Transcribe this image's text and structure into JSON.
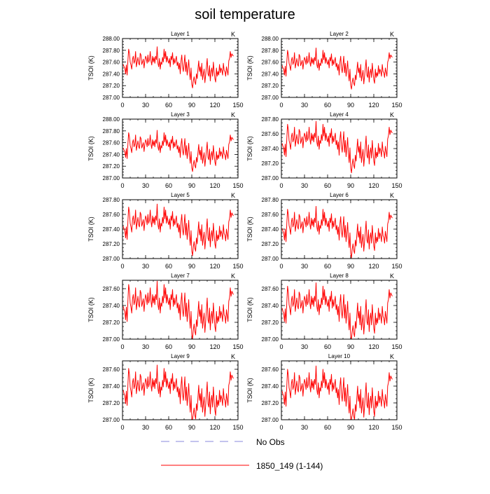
{
  "title": "soil temperature",
  "y_axis_label": "TSOI  (K)",
  "unit_label": "K",
  "colors": {
    "obs": "#8888dd",
    "model": "#ff0000"
  },
  "legend": [
    {
      "label": "No Obs",
      "style": "dashed",
      "color": "#8888dd"
    },
    {
      "label": "1850_149 (1-144)",
      "style": "solid",
      "color": "#ff0000"
    }
  ],
  "chart_data": [
    {
      "type": "line",
      "title": "Layer 1",
      "ylabel": "TSOI  (K)",
      "xlim": [
        0,
        150
      ],
      "xticks": [
        0,
        30,
        60,
        90,
        120,
        150
      ],
      "ylim": [
        287.0,
        288.0
      ],
      "yticks": [
        "287.00",
        "287.20",
        "287.40",
        "287.60",
        "287.80",
        "288.00"
      ],
      "offset": 0.0,
      "series": [
        {
          "name": "1850_149 (1-144)",
          "color": "#ff0000"
        }
      ]
    },
    {
      "type": "line",
      "title": "Layer 2",
      "ylabel": "TSOI  (K)",
      "xlim": [
        0,
        150
      ],
      "xticks": [
        0,
        30,
        60,
        90,
        120,
        150
      ],
      "ylim": [
        287.0,
        288.0
      ],
      "yticks": [
        "287.00",
        "287.20",
        "287.40",
        "287.60",
        "287.80",
        "288.00"
      ],
      "offset": -0.02,
      "series": [
        {
          "name": "1850_149 (1-144)",
          "color": "#ff0000"
        }
      ]
    },
    {
      "type": "line",
      "title": "Layer 3",
      "ylabel": "TSOI  (K)",
      "xlim": [
        0,
        150
      ],
      "xticks": [
        0,
        30,
        60,
        90,
        120,
        150
      ],
      "ylim": [
        287.0,
        288.0
      ],
      "yticks": [
        "287.00",
        "287.20",
        "287.40",
        "287.60",
        "287.80",
        "288.00"
      ],
      "offset": -0.05,
      "series": [
        {
          "name": "1850_149 (1-144)",
          "color": "#ff0000"
        }
      ]
    },
    {
      "type": "line",
      "title": "Layer 4",
      "ylabel": "TSOI  (K)",
      "xlim": [
        0,
        150
      ],
      "xticks": [
        0,
        30,
        60,
        90,
        120,
        150
      ],
      "ylim": [
        287.0,
        287.8
      ],
      "yticks": [
        "287.00",
        "287.20",
        "287.40",
        "287.60",
        "287.80"
      ],
      "offset": -0.09,
      "series": [
        {
          "name": "1850_149 (1-144)",
          "color": "#ff0000"
        }
      ]
    },
    {
      "type": "line",
      "title": "Layer 5",
      "ylabel": "TSOI  (K)",
      "xlim": [
        0,
        150
      ],
      "xticks": [
        0,
        30,
        60,
        90,
        120,
        150
      ],
      "ylim": [
        287.0,
        287.8
      ],
      "yticks": [
        "287.00",
        "287.20",
        "287.40",
        "287.60",
        "287.80"
      ],
      "offset": -0.12,
      "series": [
        {
          "name": "1850_149 (1-144)",
          "color": "#ff0000"
        }
      ]
    },
    {
      "type": "line",
      "title": "Layer 6",
      "ylabel": "TSOI  (K)",
      "xlim": [
        0,
        150
      ],
      "xticks": [
        0,
        30,
        60,
        90,
        120,
        150
      ],
      "ylim": [
        287.0,
        287.8
      ],
      "yticks": [
        "287.00",
        "287.20",
        "287.40",
        "287.60",
        "287.80"
      ],
      "offset": -0.15,
      "series": [
        {
          "name": "1850_149 (1-144)",
          "color": "#ff0000"
        }
      ]
    },
    {
      "type": "line",
      "title": "Layer 7",
      "ylabel": "TSOI  (K)",
      "xlim": [
        0,
        150
      ],
      "xticks": [
        0,
        30,
        60,
        90,
        120,
        150
      ],
      "ylim": [
        287.0,
        287.7
      ],
      "yticks": [
        "287.00",
        "287.20",
        "287.40",
        "287.60"
      ],
      "offset": -0.17,
      "series": [
        {
          "name": "1850_149 (1-144)",
          "color": "#ff0000"
        }
      ]
    },
    {
      "type": "line",
      "title": "Layer 8",
      "ylabel": "TSOI  (K)",
      "xlim": [
        0,
        150
      ],
      "xticks": [
        0,
        30,
        60,
        90,
        120,
        150
      ],
      "ylim": [
        287.0,
        287.7
      ],
      "yticks": [
        "287.00",
        "287.20",
        "287.40",
        "287.60"
      ],
      "offset": -0.19,
      "series": [
        {
          "name": "1850_149 (1-144)",
          "color": "#ff0000"
        }
      ]
    },
    {
      "type": "line",
      "title": "Layer 9",
      "ylabel": "TSOI  (K)",
      "xlim": [
        0,
        150
      ],
      "xticks": [
        0,
        30,
        60,
        90,
        120,
        150
      ],
      "ylim": [
        287.0,
        287.7
      ],
      "yticks": [
        "287.00",
        "287.20",
        "287.40",
        "287.60"
      ],
      "offset": -0.21,
      "series": [
        {
          "name": "1850_149 (1-144)",
          "color": "#ff0000"
        }
      ]
    },
    {
      "type": "line",
      "title": "Layer 10",
      "ylabel": "TSOI  (K)",
      "xlim": [
        0,
        150
      ],
      "xticks": [
        0,
        30,
        60,
        90,
        120,
        150
      ],
      "ylim": [
        287.0,
        287.7
      ],
      "yticks": [
        "287.00",
        "287.20",
        "287.40",
        "287.60"
      ],
      "offset": -0.22,
      "series": [
        {
          "name": "1850_149 (1-144)",
          "color": "#ff0000"
        }
      ]
    }
  ],
  "base_series": {
    "x": [
      1,
      2,
      3,
      4,
      5,
      6,
      7,
      8,
      9,
      10,
      11,
      12,
      13,
      14,
      15,
      16,
      17,
      18,
      19,
      20,
      21,
      22,
      23,
      24,
      25,
      26,
      27,
      28,
      29,
      30,
      31,
      32,
      33,
      34,
      35,
      36,
      37,
      38,
      39,
      40,
      41,
      42,
      43,
      44,
      45,
      46,
      47,
      48,
      49,
      50,
      51,
      52,
      53,
      54,
      55,
      56,
      57,
      58,
      59,
      60,
      61,
      62,
      63,
      64,
      65,
      66,
      67,
      68,
      69,
      70,
      71,
      72,
      73,
      74,
      75,
      76,
      77,
      78,
      79,
      80,
      81,
      82,
      83,
      84,
      85,
      86,
      87,
      88,
      89,
      90,
      91,
      92,
      93,
      94,
      95,
      96,
      97,
      98,
      99,
      100,
      101,
      102,
      103,
      104,
      105,
      106,
      107,
      108,
      109,
      110,
      111,
      112,
      113,
      114,
      115,
      116,
      117,
      118,
      119,
      120,
      121,
      122,
      123,
      124,
      125,
      126,
      127,
      128,
      129,
      130,
      131,
      132,
      133,
      134,
      135,
      136,
      137,
      138,
      139,
      140,
      141,
      142,
      143,
      144
    ],
    "y": [
      287.56,
      287.52,
      287.5,
      287.4,
      287.55,
      287.38,
      287.62,
      287.82,
      287.75,
      287.6,
      287.55,
      287.48,
      287.65,
      287.7,
      287.58,
      287.62,
      287.78,
      287.52,
      287.6,
      287.68,
      287.58,
      287.55,
      287.75,
      287.72,
      287.56,
      287.6,
      287.65,
      287.5,
      287.62,
      287.7,
      287.66,
      287.58,
      287.72,
      287.6,
      287.64,
      287.78,
      287.62,
      287.55,
      287.7,
      287.6,
      287.68,
      287.58,
      287.7,
      287.64,
      287.86,
      287.58,
      287.52,
      287.66,
      287.48,
      287.6,
      287.56,
      287.68,
      287.6,
      287.82,
      287.66,
      287.78,
      287.6,
      287.7,
      287.62,
      287.58,
      287.66,
      287.52,
      287.7,
      287.64,
      287.76,
      287.56,
      287.66,
      287.58,
      287.64,
      287.7,
      287.54,
      287.6,
      287.48,
      287.58,
      287.4,
      287.62,
      287.72,
      287.52,
      287.44,
      287.58,
      287.72,
      287.44,
      287.6,
      287.38,
      287.5,
      287.64,
      287.42,
      287.3,
      287.5,
      287.22,
      287.16,
      287.28,
      287.35,
      287.26,
      287.22,
      287.4,
      287.32,
      287.48,
      287.62,
      287.44,
      287.52,
      287.36,
      287.58,
      287.3,
      287.4,
      287.48,
      287.25,
      287.38,
      287.52,
      287.66,
      287.4,
      287.36,
      287.54,
      287.28,
      287.44,
      287.5,
      287.36,
      287.6,
      287.44,
      287.32,
      287.26,
      287.5,
      287.36,
      287.44,
      287.38,
      287.56,
      287.42,
      287.5,
      287.46,
      287.38,
      287.58,
      287.46,
      287.44,
      287.36,
      287.52,
      287.45,
      287.38,
      287.62,
      287.66,
      287.78,
      287.68,
      287.74,
      287.72,
      287.7
    ]
  }
}
